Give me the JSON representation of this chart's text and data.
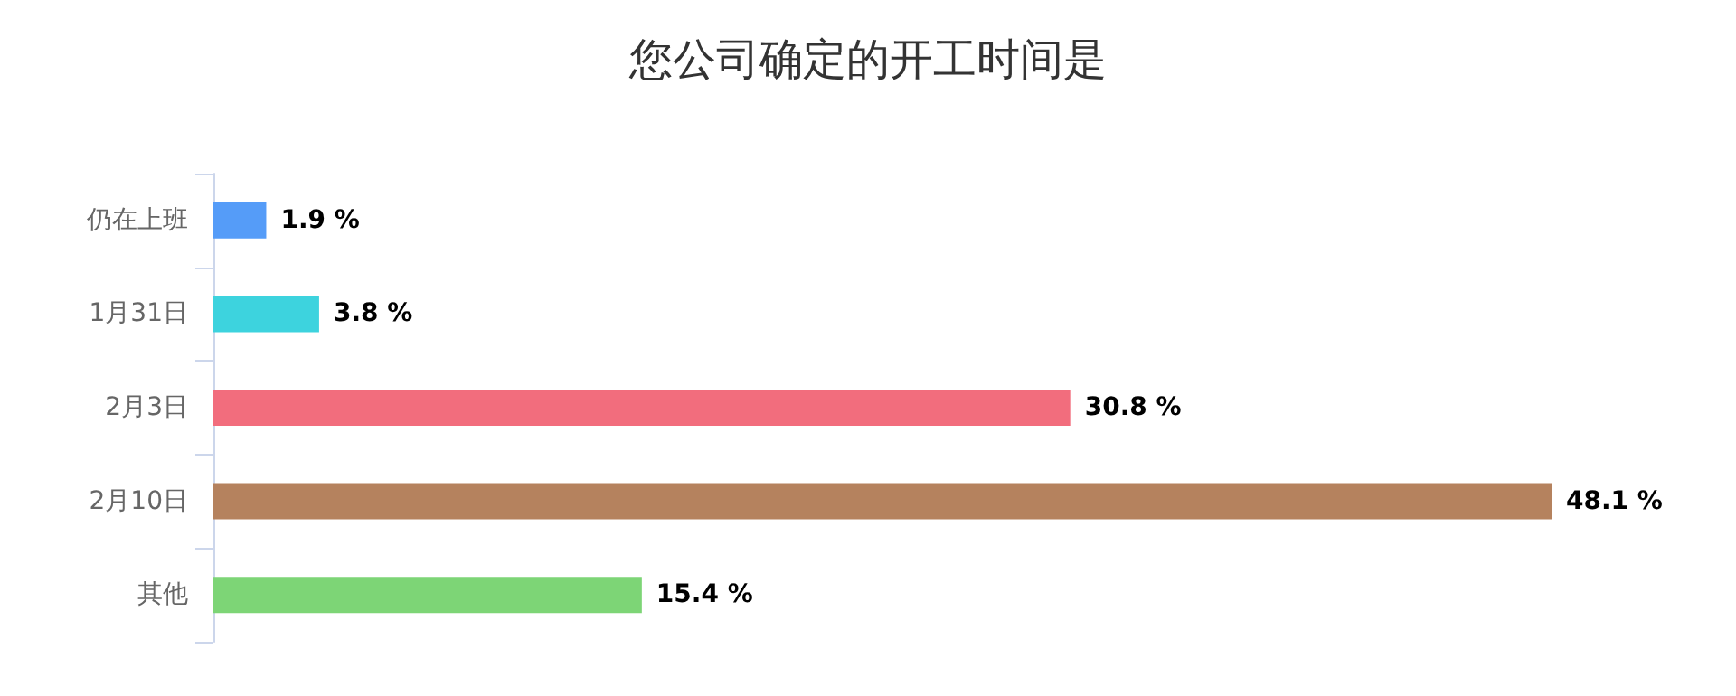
{
  "chart_data": {
    "type": "bar",
    "orientation": "horizontal",
    "title": "您公司确定的开工时间是",
    "categories": [
      "仍在上班",
      "1月31日",
      "2月3日",
      "2月10日",
      "其他"
    ],
    "values": [
      1.9,
      3.8,
      30.8,
      48.1,
      15.4
    ],
    "value_labels": [
      "1.9 %",
      "3.8 %",
      "30.8 %",
      "48.1 %",
      "15.4 %"
    ],
    "colors": [
      "#559cf8",
      "#3dd3de",
      "#f26d7d",
      "#b5825e",
      "#7dd576"
    ]
  }
}
